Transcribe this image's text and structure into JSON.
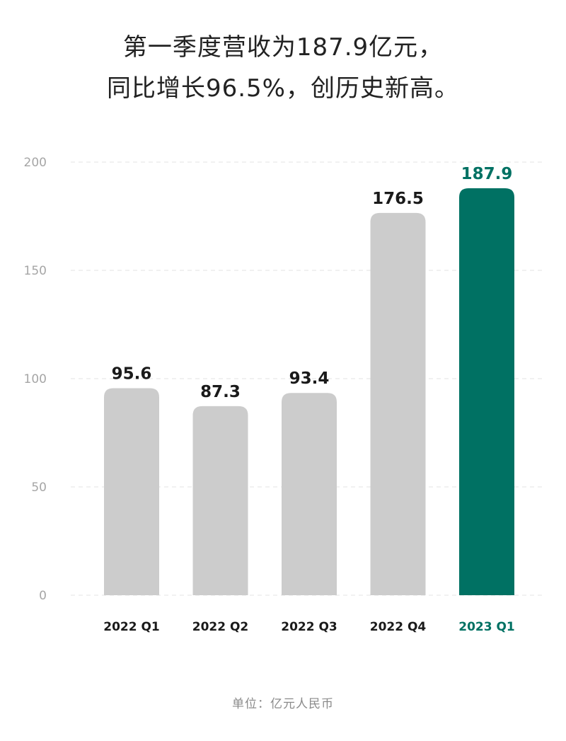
{
  "title": {
    "line1": "第一季度营收为187.9亿元，",
    "line2": "同比增长96.5%，创历史新高。"
  },
  "unit_note": "单位：亿元人民币",
  "chart_data": {
    "type": "bar",
    "title": "第一季度营收为187.9亿元，同比增长96.5%，创历史新高。",
    "categories": [
      "2022 Q1",
      "2022 Q2",
      "2022 Q3",
      "2022 Q4",
      "2023 Q1"
    ],
    "values": [
      95.6,
      87.3,
      93.4,
      176.5,
      187.9
    ],
    "value_labels": [
      "95.6",
      "87.3",
      "93.4",
      "176.5",
      "187.9"
    ],
    "ylim": [
      0,
      200
    ],
    "yticks": [
      0,
      50,
      100,
      150,
      200
    ],
    "ytick_labels": [
      "0",
      "50",
      "100",
      "150",
      "200"
    ],
    "grid": true,
    "xlabel": "",
    "ylabel": "",
    "highlight_index": 4,
    "colors": {
      "bar": "#cccccc",
      "highlight": "#007163",
      "grid": "#e3e3e3",
      "tick_text": "#a6a6a6",
      "label_text": "#1a1a1a"
    }
  }
}
